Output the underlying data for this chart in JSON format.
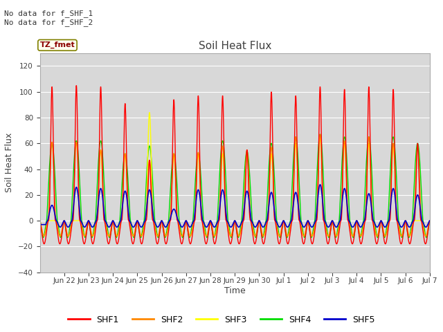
{
  "title": "Soil Heat Flux",
  "ylabel": "Soil Heat Flux",
  "xlabel": "Time",
  "ylim": [
    -40,
    130
  ],
  "yticks": [
    -40,
    -20,
    0,
    20,
    40,
    60,
    80,
    100,
    120
  ],
  "bg_color": "#d8d8d8",
  "text_color": "#404040",
  "annotation_text": "No data for f_SHF_1\nNo data for f_SHF_2",
  "tz_label": "TZ_fmet",
  "colors": {
    "SHF1": "#ff0000",
    "SHF2": "#ff8800",
    "SHF3": "#ffff00",
    "SHF4": "#00dd00",
    "SHF5": "#0000cc"
  },
  "x_tick_labels": [
    "Jun 22",
    "Jun 23",
    "Jun 24",
    "Jun 25",
    "Jun 26",
    "Jun 27",
    "Jun 28",
    "Jun 29",
    "Jun 30",
    "Jul 1",
    "Jul 2",
    "Jul 3",
    "Jul 4",
    "Jul 5",
    "Jul 6",
    "Jul 7"
  ],
  "num_days": 16,
  "points_per_day": 144
}
